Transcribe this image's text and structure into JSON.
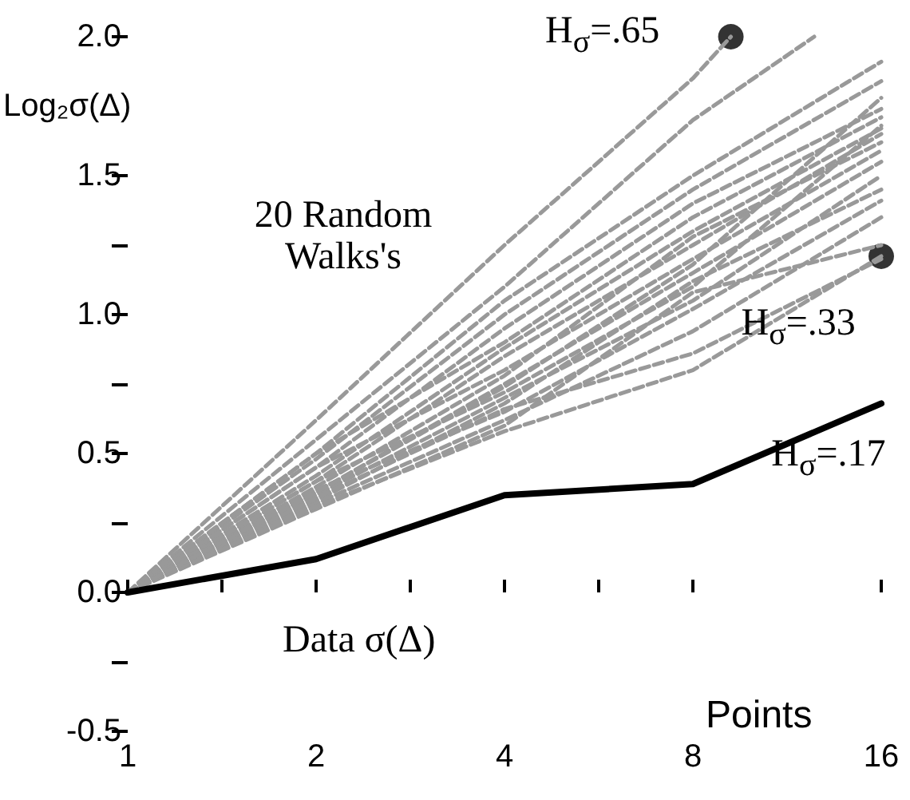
{
  "chart_data": {
    "type": "line",
    "xlabel": "Points",
    "ylabel": "Log₂σ(Δ)",
    "x": [
      1,
      2,
      4,
      8,
      16
    ],
    "xlim": [
      1,
      16
    ],
    "ylim": [
      -0.5,
      2.0
    ],
    "log": "x",
    "grid": false,
    "marker": "none",
    "xticks": [
      1,
      {
        "value": 1.41,
        "label": null
      },
      2,
      {
        "value": 2.83,
        "label": null
      },
      4,
      {
        "value": 5.66,
        "label": null
      },
      8,
      16
    ],
    "yticks": [
      {
        "value": -0.5,
        "label": "-0.5"
      },
      {
        "value": -0.25,
        "label": null
      },
      {
        "value": 0,
        "label": "0.0"
      },
      {
        "value": 0.25,
        "label": null
      },
      {
        "value": 0.5,
        "label": "0.5"
      },
      {
        "value": 0.75,
        "label": null
      },
      {
        "value": 1,
        "label": "1.0"
      },
      {
        "value": 1.25,
        "label": null
      },
      {
        "value": 1.5,
        "label": "1.5"
      },
      {
        "value": 1.75,
        "label": null
      },
      {
        "value": 2,
        "label": "2.0"
      }
    ],
    "annotations": [
      "20 Random Walks's",
      "Data σ(Δ)",
      "H$_{σ}$=.65",
      "H$_{σ}$=.33",
      "H$_{σ}$=.17"
    ],
    "series": [
      {
        "color": "#999999",
        "line_style": "dashed",
        "x": [
          1,
          2,
          4,
          8,
          9.2
        ],
        "values": [
          0,
          0.62,
          1.25,
          1.85,
          2.0
        ]
      },
      {
        "color": "#999999",
        "line_style": "dashed",
        "x": [
          1,
          2,
          4,
          8,
          12.5
        ],
        "values": [
          0,
          0.55,
          1.1,
          1.7,
          2.0
        ]
      },
      {
        "color": "#999999",
        "line_style": "dashed",
        "values": [
          0,
          0.5,
          1.05,
          1.5,
          1.91
        ]
      },
      {
        "color": "#999999",
        "line_style": "dashed",
        "values": [
          0,
          0.48,
          1.0,
          1.45,
          1.84
        ]
      },
      {
        "color": "#999999",
        "line_style": "dashed",
        "values": [
          0,
          0.45,
          0.95,
          1.4,
          1.74
        ]
      },
      {
        "color": "#999999",
        "line_style": "dashed",
        "values": [
          0,
          0.5,
          0.9,
          1.35,
          1.71
        ]
      },
      {
        "color": "#999999",
        "line_style": "dashed",
        "values": [
          0,
          0.42,
          0.88,
          1.3,
          1.67
        ]
      },
      {
        "color": "#999999",
        "line_style": "dashed",
        "values": [
          0,
          0.4,
          0.85,
          1.25,
          1.65
        ]
      },
      {
        "color": "#999999",
        "line_style": "dashed",
        "values": [
          0,
          0.45,
          0.8,
          1.2,
          1.59
        ]
      },
      {
        "color": "#999999",
        "line_style": "dashed",
        "values": [
          0,
          0.38,
          0.78,
          1.28,
          1.62
        ]
      },
      {
        "color": "#999999",
        "line_style": "dashed",
        "values": [
          0,
          0.36,
          0.75,
          1.15,
          1.55
        ]
      },
      {
        "color": "#999999",
        "line_style": "dashed",
        "values": [
          0,
          0.4,
          0.72,
          1.1,
          1.68
        ]
      },
      {
        "color": "#999999",
        "line_style": "dashed",
        "values": [
          0,
          0.35,
          0.7,
          1.05,
          1.5
        ]
      },
      {
        "color": "#999999",
        "line_style": "dashed",
        "values": [
          0,
          0.33,
          0.68,
          1.12,
          1.45
        ]
      },
      {
        "color": "#999999",
        "line_style": "dashed",
        "values": [
          0,
          0.37,
          0.65,
          1.02,
          1.41
        ]
      },
      {
        "color": "#999999",
        "line_style": "dashed",
        "values": [
          0,
          0.32,
          0.62,
          0.94,
          1.35
        ]
      },
      {
        "color": "#999999",
        "line_style": "dashed",
        "values": [
          0,
          0.3,
          0.6,
          1.08,
          1.25
        ]
      },
      {
        "color": "#999999",
        "line_style": "dashed",
        "values": [
          0,
          0.34,
          0.66,
          0.86,
          1.2
        ]
      },
      {
        "color": "#999999",
        "line_style": "dashed",
        "values": [
          0,
          0.31,
          0.58,
          0.8,
          1.21
        ]
      },
      {
        "color": "#999999",
        "line_style": "dashed",
        "values": [
          0,
          0.36,
          0.74,
          1.18,
          1.78
        ]
      },
      {
        "color": "#000000",
        "line_style": "solid",
        "values": [
          0,
          0.12,
          0.35,
          0.39,
          0.68
        ]
      },
      {
        "type": "scatter",
        "color": "#000000",
        "marker": "circle",
        "x": [
          9.2,
          16
        ],
        "values": [
          2.0,
          1.21
        ]
      }
    ]
  }
}
